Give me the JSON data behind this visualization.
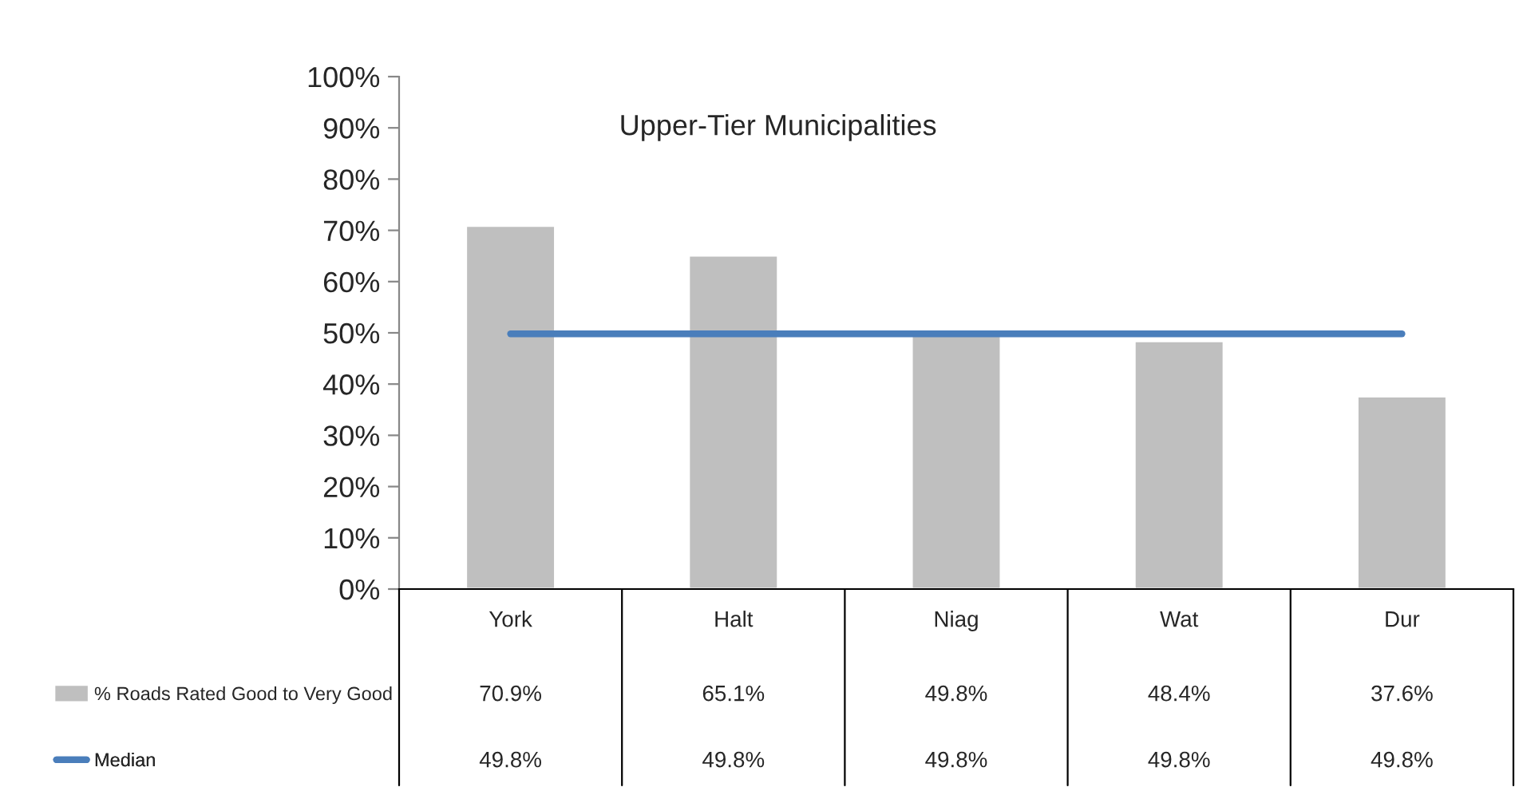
{
  "chart_data": {
    "type": "bar",
    "title": "Upper-Tier Municipalities",
    "categories": [
      "York",
      "Halt",
      "Niag",
      "Wat",
      "Dur"
    ],
    "series": [
      {
        "name": "% Roads Rated Good to Very Good",
        "color": "#bfbfbf",
        "values": [
          70.9,
          65.1,
          49.8,
          48.4,
          37.6
        ],
        "value_labels": [
          "70.9%",
          "65.1%",
          "49.8%",
          "48.4%",
          "37.6%"
        ]
      },
      {
        "name": "Median",
        "type": "line",
        "color": "#4a7ebb",
        "values": [
          49.8,
          49.8,
          49.8,
          49.8,
          49.8
        ],
        "value_labels": [
          "49.8%",
          "49.8%",
          "49.8%",
          "49.8%",
          "49.8%"
        ]
      }
    ],
    "ylim": [
      0,
      100
    ],
    "yticks": [
      {
        "value": 0,
        "label": "0%"
      },
      {
        "value": 10,
        "label": "10%"
      },
      {
        "value": 20,
        "label": "20%"
      },
      {
        "value": 30,
        "label": "30%"
      },
      {
        "value": 40,
        "label": "40%"
      },
      {
        "value": 50,
        "label": "50%"
      },
      {
        "value": 60,
        "label": "60%"
      },
      {
        "value": 70,
        "label": "70%"
      },
      {
        "value": 80,
        "label": "80%"
      },
      {
        "value": 90,
        "label": "90%"
      },
      {
        "value": 100,
        "label": "100%"
      }
    ],
    "legend": "bottom",
    "grid": false
  }
}
